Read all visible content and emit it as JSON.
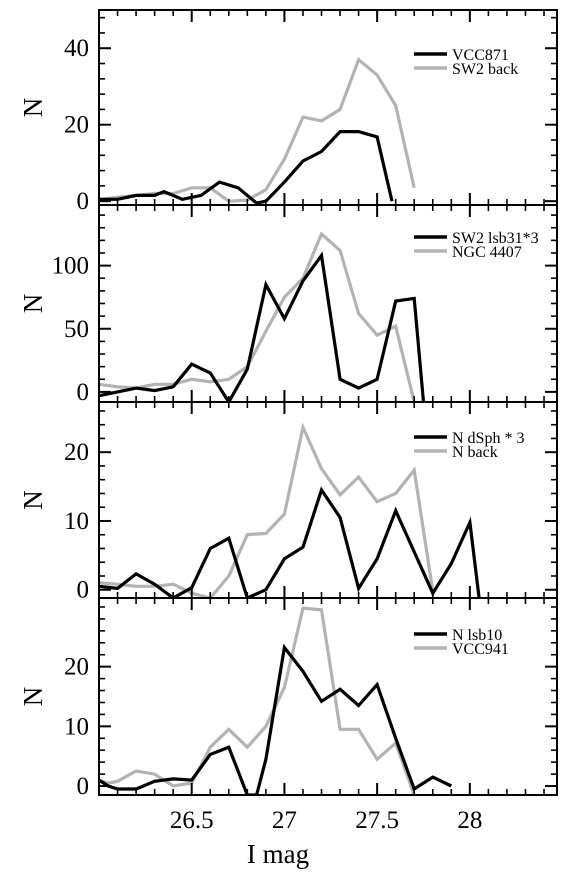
{
  "x_axis": {
    "label": "I mag",
    "range": [
      26.0,
      28.47
    ],
    "ticks": [
      26.5,
      27,
      27.5,
      28
    ],
    "tick_labels": [
      "26.5",
      "27",
      "27.5",
      "28"
    ]
  },
  "colors": {
    "primary": "#000000",
    "secondary": "#b3b3b3"
  },
  "chart_data": [
    {
      "type": "line",
      "ylabel": "N",
      "ylim": [
        -1,
        50
      ],
      "yticks": [
        0,
        20,
        40
      ],
      "ytick_labels": [
        "0",
        "20",
        "40"
      ],
      "legend_position": "top-right",
      "series": [
        {
          "name": "VCC871",
          "color": "#000000",
          "points": [
            [
              26.0,
              0.5
            ],
            [
              26.1,
              0.5
            ],
            [
              26.2,
              1.5
            ],
            [
              26.3,
              1.5
            ],
            [
              26.35,
              2.5
            ],
            [
              26.45,
              0.5
            ],
            [
              26.55,
              1.5
            ],
            [
              26.65,
              5
            ],
            [
              26.75,
              3.5
            ],
            [
              26.85,
              -0.5
            ],
            [
              26.9,
              0
            ],
            [
              27.0,
              5
            ],
            [
              27.1,
              10.5
            ],
            [
              27.2,
              13
            ],
            [
              27.3,
              18.2
            ],
            [
              27.4,
              18.2
            ],
            [
              27.5,
              16.8
            ],
            [
              27.58,
              0
            ]
          ]
        },
        {
          "name": "SW2 back",
          "color": "#b3b3b3",
          "points": [
            [
              26.0,
              0.5
            ],
            [
              26.1,
              1
            ],
            [
              26.2,
              1.5
            ],
            [
              26.3,
              2
            ],
            [
              26.4,
              2
            ],
            [
              26.5,
              3.5
            ],
            [
              26.6,
              3.5
            ],
            [
              26.7,
              0
            ],
            [
              26.8,
              0.3
            ],
            [
              26.9,
              3
            ],
            [
              27.0,
              11
            ],
            [
              27.1,
              22
            ],
            [
              27.2,
              21
            ],
            [
              27.3,
              24
            ],
            [
              27.4,
              37
            ],
            [
              27.5,
              33
            ],
            [
              27.6,
              25
            ],
            [
              27.7,
              3.5
            ]
          ]
        }
      ]
    },
    {
      "type": "line",
      "ylabel": "N",
      "ylim": [
        -8,
        148
      ],
      "yticks": [
        0,
        50,
        100
      ],
      "ytick_labels": [
        "0",
        "50",
        "100"
      ],
      "legend_position": "top-right",
      "series": [
        {
          "name": "SW2 lsb31*3",
          "color": "#000000",
          "points": [
            [
              26.0,
              -3
            ],
            [
              26.1,
              0
            ],
            [
              26.2,
              3
            ],
            [
              26.3,
              1
            ],
            [
              26.4,
              4
            ],
            [
              26.5,
              22
            ],
            [
              26.6,
              15
            ],
            [
              26.7,
              -8
            ],
            [
              26.8,
              18
            ],
            [
              26.9,
              85
            ],
            [
              27.0,
              58
            ],
            [
              27.1,
              88
            ],
            [
              27.2,
              108
            ],
            [
              27.3,
              10
            ],
            [
              27.4,
              3
            ],
            [
              27.5,
              10
            ],
            [
              27.6,
              72
            ],
            [
              27.7,
              74
            ],
            [
              27.75,
              -8
            ]
          ]
        },
        {
          "name": "NGC 4407",
          "color": "#b3b3b3",
          "points": [
            [
              26.0,
              6
            ],
            [
              26.1,
              4
            ],
            [
              26.2,
              3
            ],
            [
              26.3,
              6
            ],
            [
              26.4,
              6
            ],
            [
              26.5,
              10
            ],
            [
              26.6,
              8
            ],
            [
              26.7,
              10
            ],
            [
              26.8,
              20
            ],
            [
              26.9,
              48
            ],
            [
              27.0,
              75
            ],
            [
              27.1,
              90
            ],
            [
              27.2,
              125
            ],
            [
              27.3,
              112
            ],
            [
              27.4,
              62
            ],
            [
              27.5,
              45
            ],
            [
              27.6,
              52
            ],
            [
              27.7,
              -8
            ]
          ]
        }
      ]
    },
    {
      "type": "line",
      "ylabel": "N",
      "ylim": [
        -1.2,
        27.3
      ],
      "yticks": [
        0,
        10,
        20
      ],
      "ytick_labels": [
        "0",
        "10",
        "20"
      ],
      "legend_position": "top-right",
      "series": [
        {
          "name": "N dSph * 3",
          "color": "#000000",
          "points": [
            [
              26.0,
              0.5
            ],
            [
              26.1,
              0.2
            ],
            [
              26.2,
              2.3
            ],
            [
              26.3,
              0.8
            ],
            [
              26.4,
              -1.2
            ],
            [
              26.5,
              0.3
            ],
            [
              26.6,
              6
            ],
            [
              26.7,
              7.5
            ],
            [
              26.8,
              -1.2
            ],
            [
              26.9,
              0
            ],
            [
              27.0,
              4.5
            ],
            [
              27.1,
              6.2
            ],
            [
              27.2,
              14.5
            ],
            [
              27.3,
              10.5
            ],
            [
              27.4,
              0.2
            ],
            [
              27.5,
              4.5
            ],
            [
              27.6,
              11.5
            ],
            [
              27.7,
              5.5
            ],
            [
              27.8,
              -0.5
            ],
            [
              27.9,
              3.8
            ],
            [
              28.0,
              9.8
            ],
            [
              28.05,
              -1.2
            ]
          ]
        },
        {
          "name": "N back",
          "color": "#b3b3b3",
          "points": [
            [
              26.0,
              1
            ],
            [
              26.1,
              0.8
            ],
            [
              26.2,
              0.5
            ],
            [
              26.3,
              0.5
            ],
            [
              26.4,
              0.8
            ],
            [
              26.5,
              -0.5
            ],
            [
              26.6,
              -1.2
            ],
            [
              26.7,
              2
            ],
            [
              26.8,
              8
            ],
            [
              26.9,
              8.2
            ],
            [
              27.0,
              11
            ],
            [
              27.1,
              23.6
            ],
            [
              27.2,
              17.6
            ],
            [
              27.3,
              13.8
            ],
            [
              27.4,
              16.4
            ],
            [
              27.5,
              12.8
            ],
            [
              27.6,
              14
            ],
            [
              27.7,
              17.4
            ],
            [
              27.8,
              -0.2
            ]
          ]
        }
      ]
    },
    {
      "type": "line",
      "ylabel": "N",
      "ylim": [
        -1.5,
        31.5
      ],
      "yticks": [
        0,
        10,
        20
      ],
      "ytick_labels": [
        "0",
        "10",
        "20"
      ],
      "legend_position": "top-right",
      "series": [
        {
          "name": "N lsb10",
          "color": "#000000",
          "points": [
            [
              26.0,
              1
            ],
            [
              26.05,
              0
            ],
            [
              26.1,
              -0.5
            ],
            [
              26.2,
              -0.5
            ],
            [
              26.3,
              0.8
            ],
            [
              26.4,
              1.2
            ],
            [
              26.5,
              1
            ],
            [
              26.6,
              5.3
            ],
            [
              26.7,
              6.5
            ],
            [
              26.8,
              -1.5
            ],
            [
              26.85,
              -1.5
            ],
            [
              26.9,
              4.5
            ],
            [
              27.0,
              23.2
            ],
            [
              27.1,
              19.2
            ],
            [
              27.2,
              14.2
            ],
            [
              27.3,
              16.2
            ],
            [
              27.4,
              13.5
            ],
            [
              27.5,
              17
            ],
            [
              27.6,
              8
            ],
            [
              27.7,
              -0.5
            ],
            [
              27.8,
              1.5
            ],
            [
              27.9,
              0
            ]
          ]
        },
        {
          "name": "VCC941",
          "color": "#b3b3b3",
          "points": [
            [
              26.0,
              1
            ],
            [
              26.05,
              0.5
            ],
            [
              26.1,
              0.8
            ],
            [
              26.2,
              2.5
            ],
            [
              26.3,
              2
            ],
            [
              26.4,
              0
            ],
            [
              26.5,
              0.5
            ],
            [
              26.6,
              6.5
            ],
            [
              26.7,
              9.5
            ],
            [
              26.8,
              6.5
            ],
            [
              26.9,
              10
            ],
            [
              27.0,
              16.5
            ],
            [
              27.1,
              29.8
            ],
            [
              27.2,
              29.5
            ],
            [
              27.3,
              9.5
            ],
            [
              27.4,
              9.5
            ],
            [
              27.5,
              4.5
            ],
            [
              27.6,
              7.2
            ],
            [
              27.7,
              -1.5
            ]
          ]
        }
      ]
    }
  ]
}
